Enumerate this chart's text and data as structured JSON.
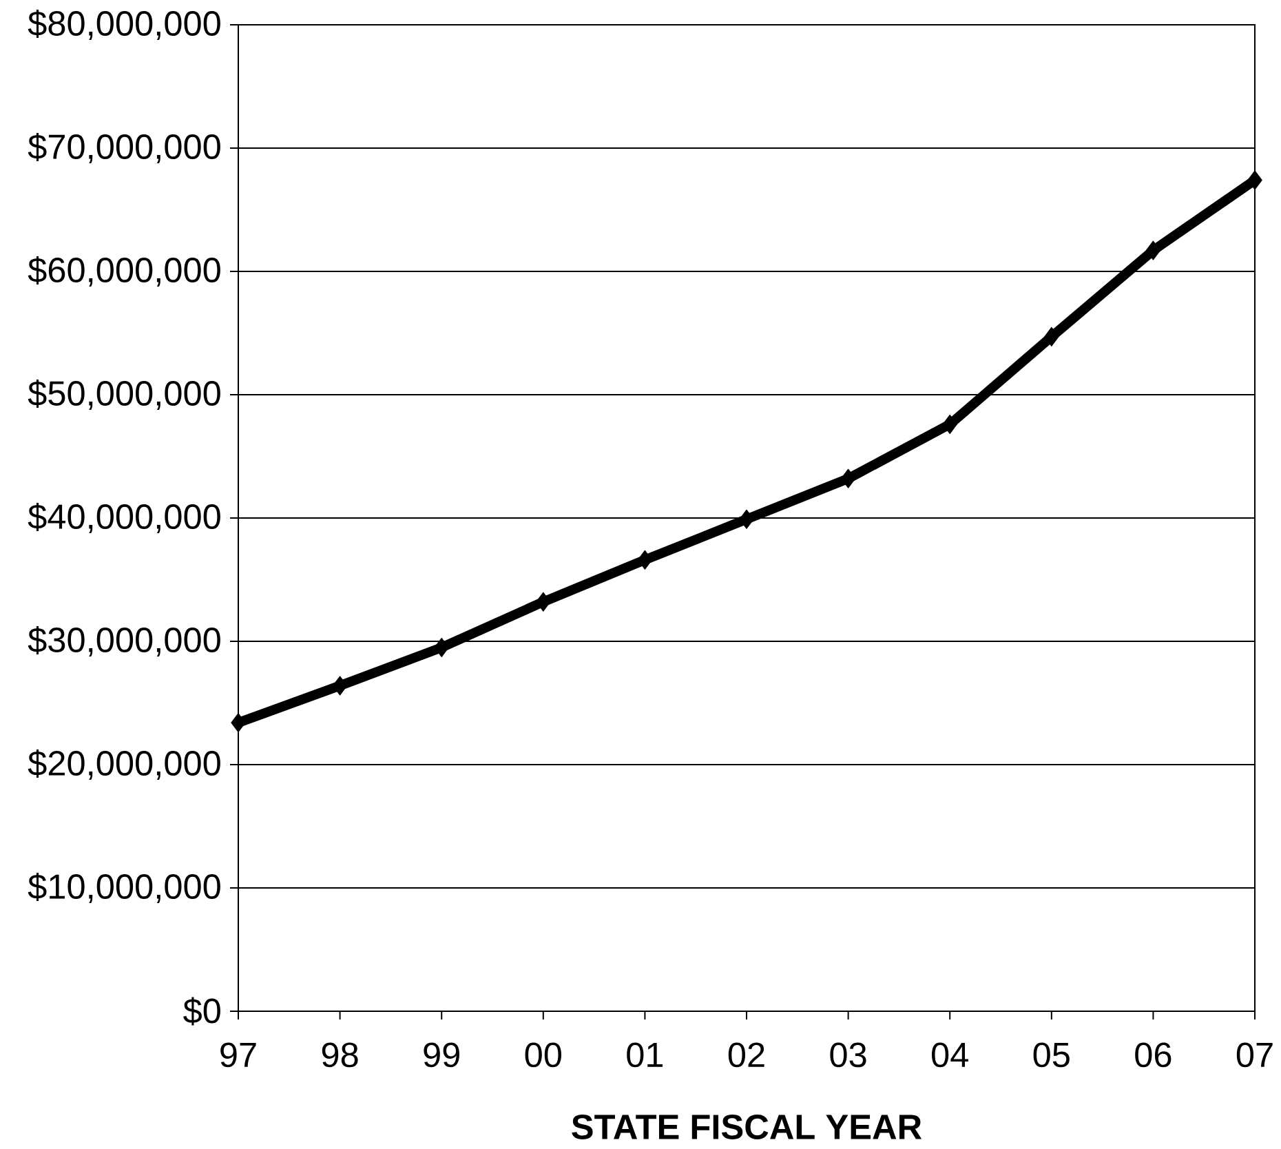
{
  "chart_data": {
    "type": "line",
    "xlabel": "STATE FISCAL YEAR",
    "categories": [
      "97",
      "98",
      "99",
      "00",
      "01",
      "02",
      "03",
      "04",
      "05",
      "06",
      "07"
    ],
    "series": [
      {
        "color": "#000000",
        "values": [
          23400000.0,
          26400000.0,
          29500000.0,
          33200000.0,
          36600000.0,
          39900000.0,
          43200000.0,
          47600000.0,
          54700000.0,
          61700000.0,
          67400000.0
        ]
      }
    ],
    "ylim": [
      0,
      80000000
    ],
    "yticks": [
      {
        "value": 0,
        "label": "$0"
      },
      {
        "value": 10000000,
        "label": "$10,000,000"
      },
      {
        "value": 20000000,
        "label": "$20,000,000"
      },
      {
        "value": 30000000,
        "label": "$30,000,000"
      },
      {
        "value": 40000000,
        "label": "$40,000,000"
      },
      {
        "value": 50000000,
        "label": "$50,000,000"
      },
      {
        "value": 60000000,
        "label": "$60,000,000"
      },
      {
        "value": 70000000,
        "label": "$70,000,000"
      },
      {
        "value": 80000000,
        "label": "$80,000,000"
      }
    ],
    "grid": "y",
    "marker": "diamond",
    "line_style": "solid"
  }
}
